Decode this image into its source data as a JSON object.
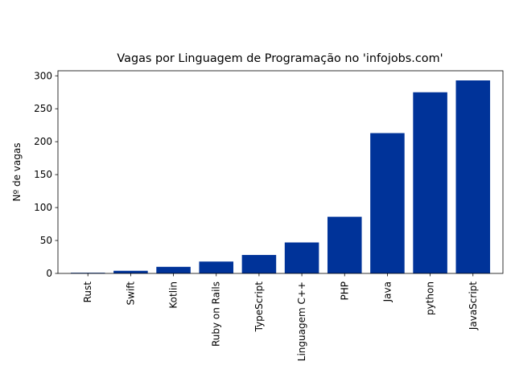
{
  "chart_data": {
    "type": "bar",
    "title": "Vagas por Linguagem de Programação no 'infojobs.com'",
    "xlabel": "",
    "ylabel": "Nº de vagas",
    "categories": [
      "Rust",
      "Swift",
      "Kotlin",
      "Ruby on Rails",
      "TypeScript",
      "Linguagem C++",
      "PHP",
      "Java",
      "python",
      "JavaScript"
    ],
    "values": [
      1,
      4,
      10,
      18,
      28,
      47,
      86,
      213,
      275,
      293
    ],
    "ylim": [
      0,
      307.65
    ],
    "yticks": [
      0,
      50,
      100,
      150,
      200,
      250,
      300
    ],
    "bar_color": "#003399",
    "grid": false,
    "legend": "none"
  }
}
